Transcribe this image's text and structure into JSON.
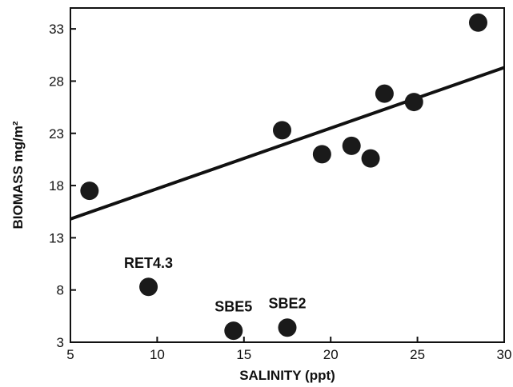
{
  "chart_data": {
    "type": "scatter",
    "title": "",
    "xlabel": "SALINITY (ppt)",
    "ylabel": "BIOMASS mg/m²",
    "xlim": [
      5,
      30
    ],
    "ylim": [
      3,
      35
    ],
    "x_ticks": [
      "5",
      "10",
      "15",
      "20",
      "25",
      "30"
    ],
    "y_ticks": [
      "3",
      "8",
      "13",
      "18",
      "23",
      "28",
      "33"
    ],
    "grid": false,
    "legend": "none",
    "series": [
      {
        "points": [
          {
            "x": 6.1,
            "y": 17.5,
            "label": ""
          },
          {
            "x": 9.5,
            "y": 8.3,
            "label": "RET4.3"
          },
          {
            "x": 14.4,
            "y": 4.1,
            "label": "SBE5"
          },
          {
            "x": 17.2,
            "y": 23.3,
            "label": ""
          },
          {
            "x": 17.5,
            "y": 4.4,
            "label": "SBE2"
          },
          {
            "x": 19.5,
            "y": 21.0,
            "label": ""
          },
          {
            "x": 21.2,
            "y": 21.8,
            "label": ""
          },
          {
            "x": 22.3,
            "y": 20.6,
            "label": ""
          },
          {
            "x": 23.1,
            "y": 26.8,
            "label": ""
          },
          {
            "x": 24.8,
            "y": 26.0,
            "label": ""
          },
          {
            "x": 28.5,
            "y": 33.6,
            "label": ""
          }
        ]
      }
    ],
    "trendline": {
      "x": [
        5,
        30
      ],
      "y": [
        14.8,
        29.3
      ]
    },
    "colors": {
      "marker": "#1a1a1a",
      "line": "#111111",
      "axis": "#111111"
    }
  }
}
